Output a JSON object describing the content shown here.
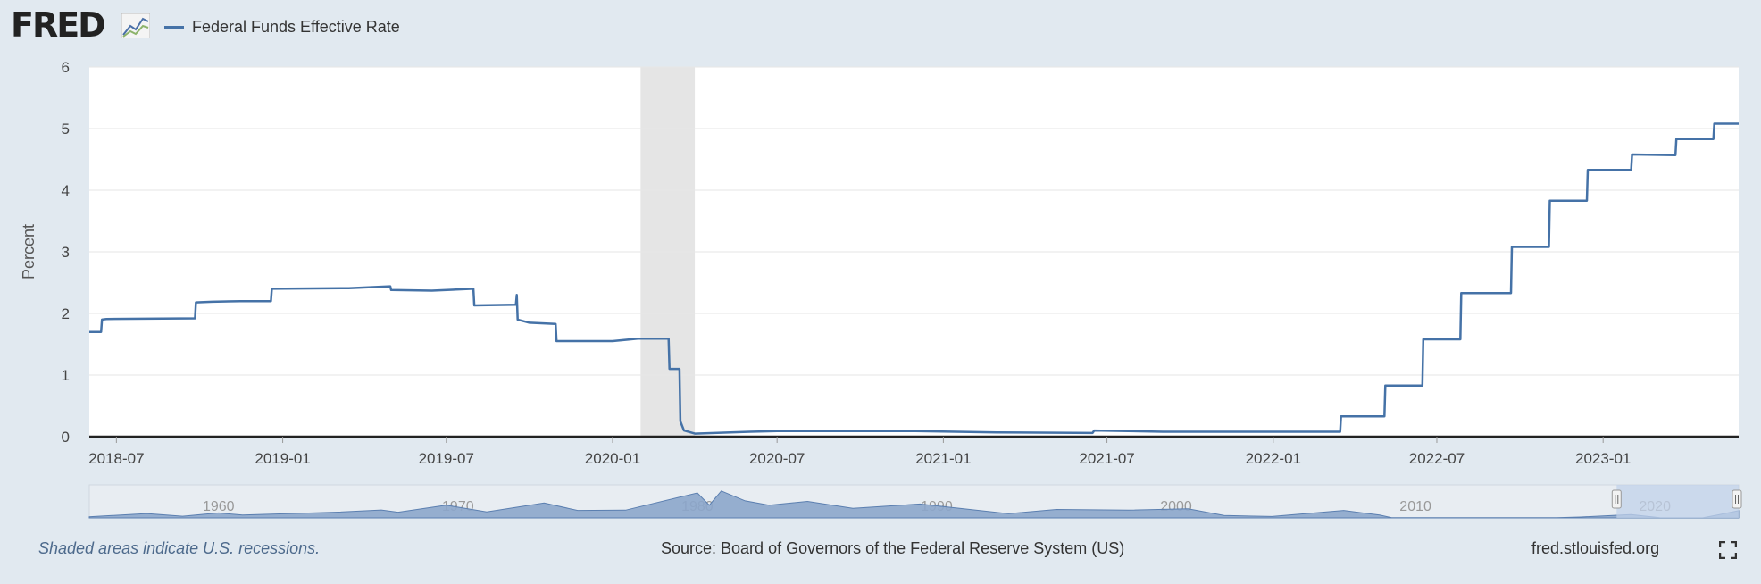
{
  "header": {
    "logo_text": "FRED",
    "legend_label": "Federal Funds Effective Rate"
  },
  "colors": {
    "series": "#4572a7",
    "recession": "#e5e5e5",
    "navigator_fill": "#8ca6cb",
    "navigator_select": "#c2d2ea"
  },
  "chart_data": {
    "type": "line",
    "ylabel": "Percent",
    "ylim": [
      0,
      6
    ],
    "yticks": [
      "0",
      "1",
      "2",
      "3",
      "4",
      "5",
      "6"
    ],
    "xrange": [
      "2018-06-01",
      "2023-05-31"
    ],
    "xticks": [
      {
        "date": "2018-07-01",
        "label": "2018-07"
      },
      {
        "date": "2019-01-01",
        "label": "2019-01"
      },
      {
        "date": "2019-07-01",
        "label": "2019-07"
      },
      {
        "date": "2020-01-01",
        "label": "2020-01"
      },
      {
        "date": "2020-07-01",
        "label": "2020-07"
      },
      {
        "date": "2021-01-01",
        "label": "2021-01"
      },
      {
        "date": "2021-07-01",
        "label": "2021-07"
      },
      {
        "date": "2022-01-01",
        "label": "2022-01"
      },
      {
        "date": "2022-07-01",
        "label": "2022-07"
      },
      {
        "date": "2023-01-01",
        "label": "2023-01"
      }
    ],
    "recessions": [
      {
        "start": "2020-02-01",
        "end": "2020-04-01"
      }
    ],
    "series": [
      {
        "name": "Federal Funds Effective Rate",
        "points": [
          [
            "2018-06-01",
            1.7
          ],
          [
            "2018-06-14",
            1.7
          ],
          [
            "2018-06-15",
            1.9
          ],
          [
            "2018-06-20",
            1.91
          ],
          [
            "2018-09-26",
            1.92
          ],
          [
            "2018-09-27",
            2.18
          ],
          [
            "2018-10-15",
            2.19
          ],
          [
            "2018-11-15",
            2.2
          ],
          [
            "2018-12-19",
            2.2
          ],
          [
            "2018-12-20",
            2.4
          ],
          [
            "2019-03-15",
            2.41
          ],
          [
            "2019-04-30",
            2.44
          ],
          [
            "2019-05-01",
            2.38
          ],
          [
            "2019-06-15",
            2.37
          ],
          [
            "2019-07-31",
            2.4
          ],
          [
            "2019-08-01",
            2.13
          ],
          [
            "2019-09-16",
            2.14
          ],
          [
            "2019-09-17",
            2.3
          ],
          [
            "2019-09-18",
            1.9
          ],
          [
            "2019-10-01",
            1.85
          ],
          [
            "2019-10-30",
            1.83
          ],
          [
            "2019-10-31",
            1.55
          ],
          [
            "2020-01-01",
            1.55
          ],
          [
            "2020-01-29",
            1.59
          ],
          [
            "2020-03-03",
            1.59
          ],
          [
            "2020-03-04",
            1.1
          ],
          [
            "2020-03-15",
            1.1
          ],
          [
            "2020-03-16",
            0.25
          ],
          [
            "2020-03-20",
            0.1
          ],
          [
            "2020-04-01",
            0.05
          ],
          [
            "2020-06-01",
            0.08
          ],
          [
            "2020-07-01",
            0.09
          ],
          [
            "2020-12-01",
            0.09
          ],
          [
            "2021-03-01",
            0.07
          ],
          [
            "2021-06-15",
            0.06
          ],
          [
            "2021-06-17",
            0.1
          ],
          [
            "2021-09-01",
            0.08
          ],
          [
            "2022-03-16",
            0.08
          ],
          [
            "2022-03-17",
            0.33
          ],
          [
            "2022-05-04",
            0.33
          ],
          [
            "2022-05-05",
            0.83
          ],
          [
            "2022-06-15",
            0.83
          ],
          [
            "2022-06-16",
            1.58
          ],
          [
            "2022-07-27",
            1.58
          ],
          [
            "2022-07-28",
            2.33
          ],
          [
            "2022-09-21",
            2.33
          ],
          [
            "2022-09-22",
            3.08
          ],
          [
            "2022-11-02",
            3.08
          ],
          [
            "2022-11-03",
            3.83
          ],
          [
            "2022-12-14",
            3.83
          ],
          [
            "2022-12-15",
            4.33
          ],
          [
            "2023-02-01",
            4.33
          ],
          [
            "2023-02-02",
            4.58
          ],
          [
            "2023-03-22",
            4.57
          ],
          [
            "2023-03-23",
            4.83
          ],
          [
            "2023-05-03",
            4.83
          ],
          [
            "2023-05-04",
            5.08
          ],
          [
            "2023-05-31",
            5.08
          ]
        ]
      }
    ],
    "navigator": {
      "labels": [
        "1960",
        "1970",
        "1980",
        "1990",
        "2000",
        "2010",
        "2020"
      ],
      "label_years": [
        1960,
        1970,
        1980,
        1990,
        2000,
        2010,
        2020
      ],
      "year_range": [
        1954.6,
        2023.5
      ],
      "selected_years": [
        2018.4,
        2023.5
      ],
      "points": [
        [
          1954.6,
          0.8
        ],
        [
          1957,
          3.1
        ],
        [
          1958.5,
          1.2
        ],
        [
          1960,
          3.5
        ],
        [
          1961,
          2.0
        ],
        [
          1965,
          4.1
        ],
        [
          1966.8,
          5.6
        ],
        [
          1967.5,
          4.0
        ],
        [
          1969.5,
          9.0
        ],
        [
          1971.2,
          4.2
        ],
        [
          1973.6,
          10.5
        ],
        [
          1975,
          5.3
        ],
        [
          1977,
          5.5
        ],
        [
          1980,
          17.6
        ],
        [
          1980.5,
          9.0
        ],
        [
          1981,
          19.0
        ],
        [
          1982,
          12.0
        ],
        [
          1983,
          9.0
        ],
        [
          1984.6,
          11.6
        ],
        [
          1986.5,
          6.8
        ],
        [
          1989.3,
          9.8
        ],
        [
          1993,
          3.0
        ],
        [
          1995,
          6.0
        ],
        [
          1998,
          5.5
        ],
        [
          2000.5,
          6.5
        ],
        [
          2002,
          1.7
        ],
        [
          2004,
          1.0
        ],
        [
          2007,
          5.25
        ],
        [
          2008.5,
          2.0
        ],
        [
          2009,
          0.15
        ],
        [
          2015.9,
          0.12
        ],
        [
          2016.9,
          0.66
        ],
        [
          2019,
          2.4
        ],
        [
          2020.2,
          0.1
        ],
        [
          2022,
          0.08
        ],
        [
          2022.7,
          2.33
        ],
        [
          2023.5,
          5.08
        ]
      ]
    }
  },
  "footer": {
    "note": "Shaded areas indicate U.S. recessions.",
    "source": "Source: Board of Governors of the Federal Reserve System (US)",
    "site": "fred.stlouisfed.org"
  }
}
